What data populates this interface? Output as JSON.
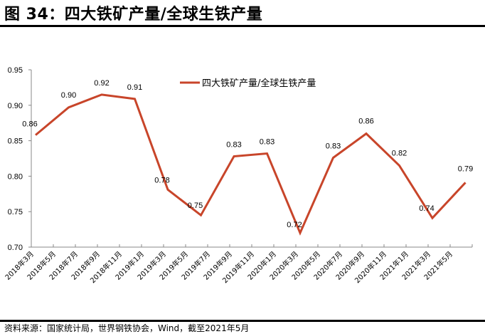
{
  "figure": {
    "title": "图 34：四大铁矿产量/全球生铁产量",
    "source": "资料来源：国家统计局，世界钢铁协会，Wind，截至2021年5月"
  },
  "chart_data": {
    "type": "line",
    "title": "四大铁矿产量/全球生铁产量",
    "xlabel": "",
    "ylabel": "",
    "ylim": [
      0.7,
      0.95
    ],
    "yticks": [
      "0.70",
      "0.75",
      "0.80",
      "0.85",
      "0.90",
      "0.95"
    ],
    "grid": false,
    "legend_position": "top-center",
    "categories": [
      "2018年3月",
      "2018年5月",
      "2018年7月",
      "2018年9月",
      "2018年11月",
      "2019年1月",
      "2019年3月",
      "2019年5月",
      "2019年7月",
      "2019年9月",
      "2019年11月",
      "2020年1月",
      "2020年3月",
      "2020年5月",
      "2020年7月",
      "2020年9月",
      "2020年11月",
      "2021年1月",
      "2021年3月",
      "2021年5月"
    ],
    "series": [
      {
        "name": "四大铁矿产量/全球生铁产量",
        "color": "#C8452A",
        "points": [
          {
            "x": "2018年3月",
            "value": 0.858,
            "label": "0.86"
          },
          {
            "x": "2018年6月",
            "value": 0.897,
            "label": "0.90"
          },
          {
            "x": "2018年9月",
            "value": 0.915,
            "label": "0.92"
          },
          {
            "x": "2018年12月",
            "value": 0.909,
            "label": "0.91"
          },
          {
            "x": "2019年3月",
            "value": 0.781,
            "label": "0.78"
          },
          {
            "x": "2019年6月",
            "value": 0.745,
            "label": "0.75"
          },
          {
            "x": "2019年9月",
            "value": 0.828,
            "label": "0.83"
          },
          {
            "x": "2019年12月",
            "value": 0.832,
            "label": "0.83"
          },
          {
            "x": "2020年3月",
            "value": 0.72,
            "label": "0.72"
          },
          {
            "x": "2020年6月",
            "value": 0.826,
            "label": "0.83"
          },
          {
            "x": "2020年9月",
            "value": 0.86,
            "label": "0.86"
          },
          {
            "x": "2020年12月",
            "value": 0.815,
            "label": "0.82"
          },
          {
            "x": "2021年3月",
            "value": 0.741,
            "label": "0.74"
          },
          {
            "x": "2021年6月",
            "value": 0.791,
            "label": "0.79"
          }
        ]
      }
    ]
  }
}
